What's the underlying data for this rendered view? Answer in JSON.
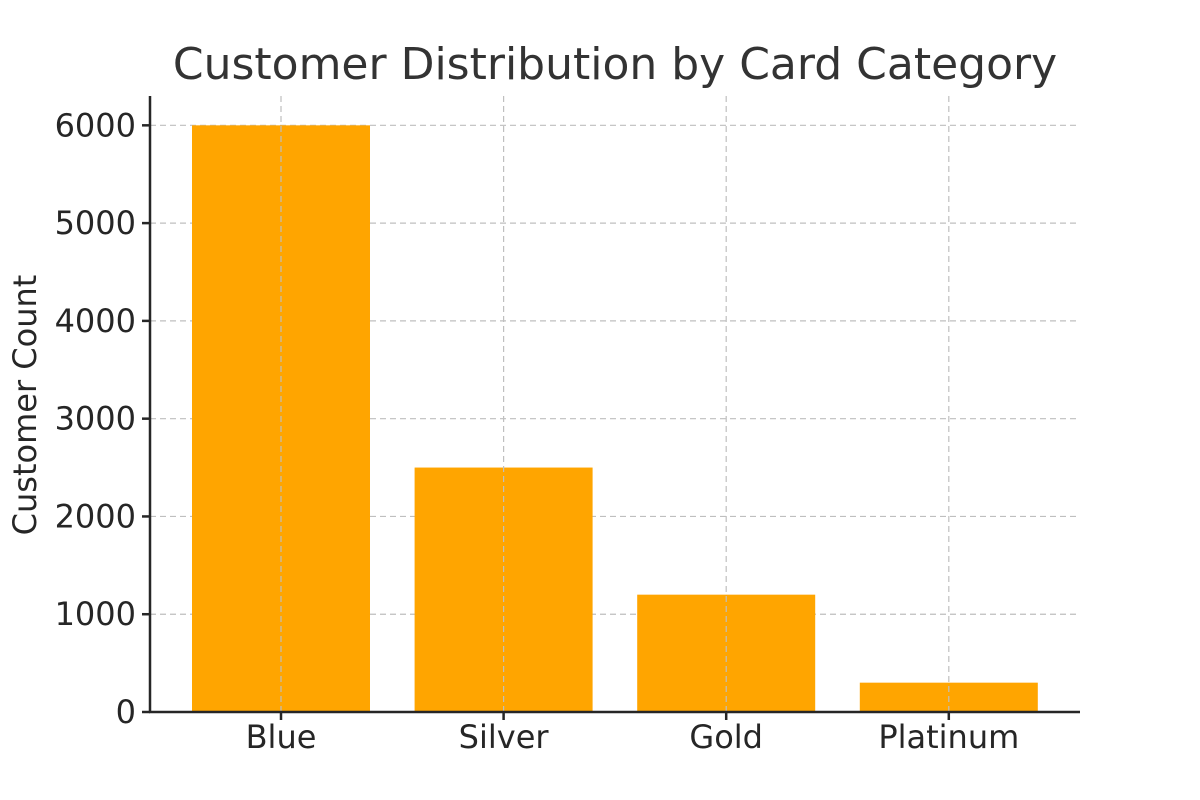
{
  "chart_data": {
    "type": "bar",
    "title": "Customer Distribution by Card Category",
    "xlabel": "",
    "ylabel": "Customer Count",
    "categories": [
      "Blue",
      "Silver",
      "Gold",
      "Platinum"
    ],
    "values": [
      6000,
      2500,
      1200,
      300
    ],
    "ylim": [
      0,
      6300
    ],
    "yticks": [
      0,
      1000,
      2000,
      3000,
      4000,
      5000,
      6000
    ],
    "grid": true,
    "colors": {
      "bar": "#FFA500",
      "grid": "#BFBFBF",
      "axis": "#262626",
      "title": "#333333"
    }
  }
}
